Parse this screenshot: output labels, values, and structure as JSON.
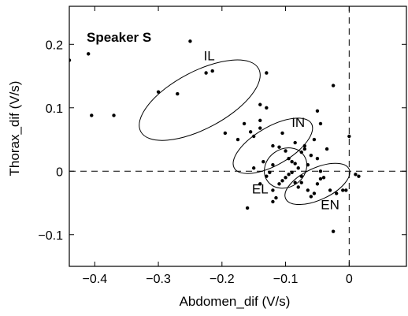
{
  "chart_data": {
    "type": "scatter",
    "title": "Speaker S",
    "xlabel": "Abdomen_dif (V/s)",
    "ylabel": "Thorax_dif (V/s)",
    "xlim": [
      -0.44,
      0.09
    ],
    "ylim": [
      -0.15,
      0.26
    ],
    "xticks": [
      -0.4,
      -0.3,
      -0.2,
      -0.1,
      0
    ],
    "xtick_labels": [
      "−0.4",
      "−0.3",
      "−0.2",
      "−0.1",
      "0"
    ],
    "yticks": [
      -0.1,
      0,
      0.1,
      0.2
    ],
    "ytick_labels": [
      "−0.1",
      "0",
      "0.1",
      "0.2"
    ],
    "grid": false,
    "reference_lines": {
      "x": 0,
      "y": 0,
      "style": "dashed"
    },
    "points": [
      [
        -0.44,
        0.175
      ],
      [
        -0.41,
        0.185
      ],
      [
        -0.405,
        0.088
      ],
      [
        -0.37,
        0.088
      ],
      [
        -0.25,
        0.205
      ],
      [
        -0.3,
        0.125
      ],
      [
        -0.27,
        0.122
      ],
      [
        -0.225,
        0.155
      ],
      [
        -0.215,
        0.158
      ],
      [
        -0.195,
        0.06
      ],
      [
        -0.175,
        0.05
      ],
      [
        -0.165,
        0.075
      ],
      [
        -0.155,
        0.062
      ],
      [
        -0.14,
        0.105
      ],
      [
        -0.14,
        0.08
      ],
      [
        -0.13,
        0.155
      ],
      [
        -0.13,
        0.1
      ],
      [
        -0.14,
        0.068
      ],
      [
        -0.15,
        0.055
      ],
      [
        -0.12,
        0.04
      ],
      [
        -0.11,
        0.038
      ],
      [
        -0.105,
        0.06
      ],
      [
        -0.1,
        0.032
      ],
      [
        -0.095,
        0.02
      ],
      [
        -0.09,
        0.015
      ],
      [
        -0.085,
        0.012
      ],
      [
        -0.08,
        0.005
      ],
      [
        -0.075,
        0.03
      ],
      [
        -0.07,
        0.04
      ],
      [
        -0.065,
        0.01
      ],
      [
        -0.06,
        0.025
      ],
      [
        -0.055,
        0.05
      ],
      [
        -0.05,
        0.095
      ],
      [
        -0.045,
        0.075
      ],
      [
        -0.05,
        0.02
      ],
      [
        -0.045,
        0.0
      ],
      [
        -0.04,
        -0.01
      ],
      [
        -0.03,
        -0.03
      ],
      [
        -0.02,
        -0.035
      ],
      [
        -0.01,
        -0.03
      ],
      [
        -0.005,
        -0.03
      ],
      [
        0.0,
        0.055
      ],
      [
        0.01,
        -0.005
      ],
      [
        0.015,
        -0.008
      ],
      [
        -0.16,
        -0.058
      ],
      [
        -0.12,
        -0.048
      ],
      [
        -0.115,
        -0.042
      ],
      [
        -0.11,
        -0.02
      ],
      [
        -0.105,
        -0.015
      ],
      [
        -0.1,
        -0.01
      ],
      [
        -0.095,
        -0.005
      ],
      [
        -0.09,
        -0.002
      ],
      [
        -0.085,
        -0.018
      ],
      [
        -0.08,
        -0.025
      ],
      [
        -0.075,
        -0.008
      ],
      [
        -0.07,
        0.035
      ],
      [
        -0.065,
        -0.03
      ],
      [
        -0.06,
        -0.04
      ],
      [
        -0.055,
        -0.035
      ],
      [
        -0.05,
        -0.02
      ],
      [
        -0.045,
        -0.012
      ],
      [
        -0.035,
        0.035
      ],
      [
        -0.025,
        0.135
      ],
      [
        -0.025,
        -0.095
      ],
      [
        -0.12,
        0.01
      ],
      [
        -0.125,
        -0.002
      ],
      [
        -0.13,
        -0.008
      ],
      [
        -0.135,
        0.015
      ],
      [
        -0.14,
        -0.02
      ],
      [
        -0.15,
        0.005
      ],
      [
        -0.12,
        -0.03
      ],
      [
        -0.075,
        -0.018
      ],
      [
        -0.085,
        0.045
      ]
    ],
    "ellipses": [
      {
        "label": "IL",
        "cx": -0.235,
        "cy": 0.112,
        "rx": 0.105,
        "ry": 0.045,
        "angle_deg": -28
      },
      {
        "label": "IN",
        "cx": -0.12,
        "cy": 0.04,
        "rx": 0.07,
        "ry": 0.03,
        "angle_deg": -30
      },
      {
        "label": "EL",
        "cx": -0.1,
        "cy": 0.005,
        "rx": 0.035,
        "ry": 0.03,
        "angle_deg": -35
      },
      {
        "label": "EN",
        "cx": -0.05,
        "cy": -0.02,
        "rx": 0.055,
        "ry": 0.025,
        "angle_deg": -25
      }
    ],
    "annotations": [
      {
        "text": "IL",
        "x": -0.22,
        "y": 0.175
      },
      {
        "text": "IN",
        "x": -0.08,
        "y": 0.07
      },
      {
        "text": "EL",
        "x": -0.14,
        "y": -0.035
      },
      {
        "text": "EN",
        "x": -0.03,
        "y": -0.06
      }
    ]
  }
}
